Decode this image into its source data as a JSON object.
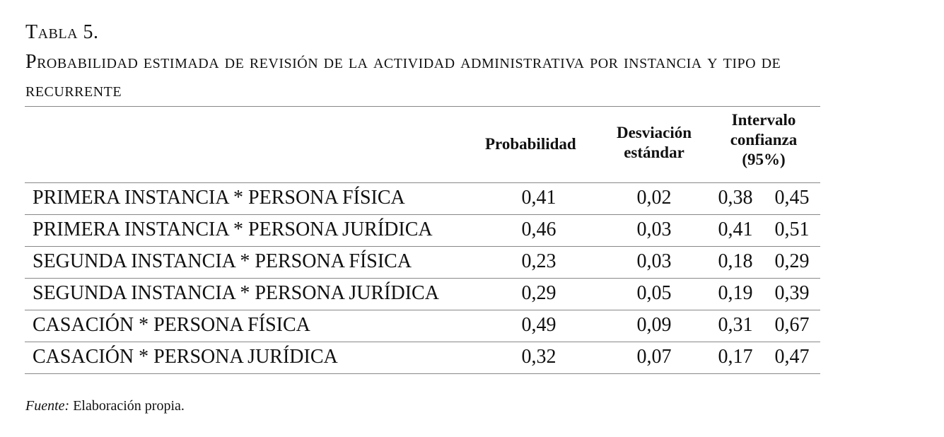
{
  "table_label": "Tabla 5.",
  "caption_line1": "Probabilidad estimada de revisión de la actividad administrativa por instancia y tipo de",
  "caption_line2": "recurrente",
  "headers": {
    "probability": "Probabilidad",
    "std_dev_line1": "Desviación",
    "std_dev_line2": "estándar",
    "ci_line1": "Intervalo",
    "ci_line2": "confianza",
    "ci_line3": "(95%)"
  },
  "rows": [
    {
      "label": "PRIMERA INSTANCIA * PERSONA FÍSICA",
      "probability": "0,41",
      "std_dev": "0,02",
      "ci_low": "0,38",
      "ci_high": "0,45"
    },
    {
      "label": "PRIMERA INSTANCIA * PERSONA JURÍDICA",
      "probability": "0,46",
      "std_dev": "0,03",
      "ci_low": "0,41",
      "ci_high": "0,51"
    },
    {
      "label": "SEGUNDA INSTANCIA * PERSONA FÍSICA",
      "probability": "0,23",
      "std_dev": "0,03",
      "ci_low": "0,18",
      "ci_high": "0,29"
    },
    {
      "label": "SEGUNDA INSTANCIA * PERSONA JURÍDICA",
      "probability": "0,29",
      "std_dev": "0,05",
      "ci_low": "0,19",
      "ci_high": "0,39"
    },
    {
      "label": "CASACIÓN * PERSONA FÍSICA",
      "probability": "0,49",
      "std_dev": "0,09",
      "ci_low": "0,31",
      "ci_high": "0,67"
    },
    {
      "label": "CASACIÓN * PERSONA JURÍDICA",
      "probability": "0,32",
      "std_dev": "0,07",
      "ci_low": "0,17",
      "ci_high": "0,47"
    }
  ],
  "source_label": "Fuente:",
  "source_text": " Elaboración propia."
}
